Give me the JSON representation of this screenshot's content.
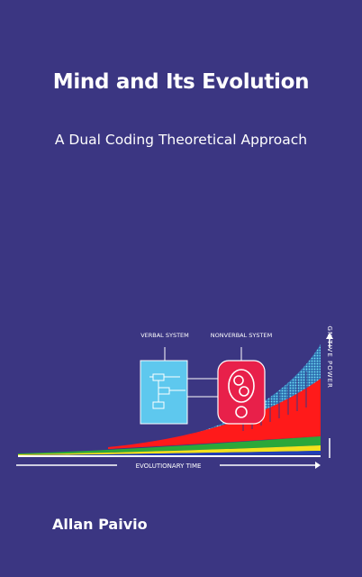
{
  "cover": {
    "title": "Mind and Its Evolution",
    "subtitle": "A Dual Coding Theoretical Approach",
    "author": "Allan Paivio"
  },
  "figure": {
    "verbal_label": "VERBAL SYSTEM",
    "nonverbal_label": "NONVERBAL SYSTEM",
    "x_axis_label": "EVOLUTIONARY TIME",
    "y_axis_label": "COGNITIVE POWER",
    "colors": {
      "background": "#3b3682",
      "verbal_box": "#5ec8ee",
      "nonverbal_box": "#e8204a",
      "red_band": "#ff1a1a",
      "green_band": "#2aa83a",
      "yellow_band": "#f3e21c",
      "blue_band": "#1f3fb8",
      "dotted_band": "#35b8d8"
    }
  }
}
